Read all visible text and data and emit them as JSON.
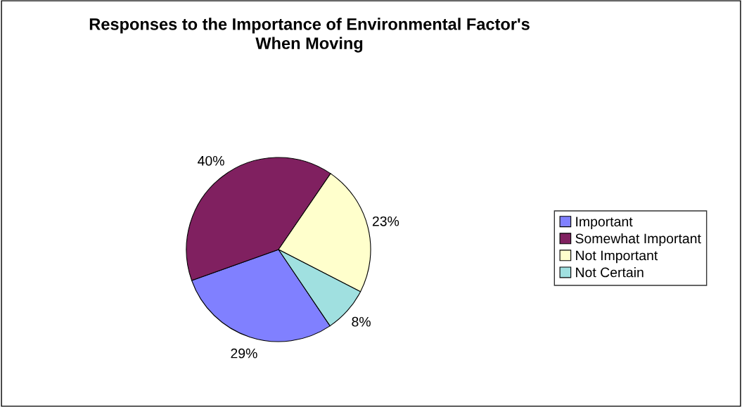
{
  "chart_data": {
    "type": "pie",
    "title": "Responses to the Importance of Environmental Factor's\nWhen Moving",
    "categories": [
      "Important",
      "Somewhat Important",
      "Not Important",
      "Not Certain"
    ],
    "values": [
      29,
      40,
      23,
      8
    ],
    "colors": [
      "#8080ff",
      "#802060",
      "#ffffcc",
      "#a0e0e0"
    ],
    "value_labels": [
      "29%",
      "40%",
      "23%",
      "8%"
    ],
    "legend": "right"
  }
}
